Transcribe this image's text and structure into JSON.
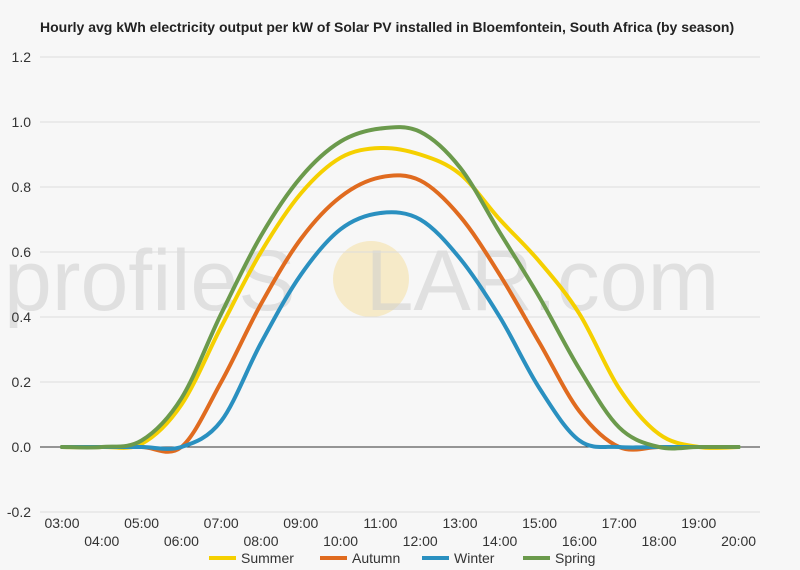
{
  "chart_data": {
    "type": "line",
    "title": "Hourly avg kWh electricity output per kW of Solar PV installed in Bloemfontein, South Africa (by season)",
    "xlabel": "",
    "ylabel": "",
    "ylim": [
      -0.2,
      1.2
    ],
    "yticks": [
      "-0.2",
      "0.0",
      "0.2",
      "0.4",
      "0.6",
      "0.8",
      "1.0",
      "1.2"
    ],
    "y_tick_values": [
      -0.2,
      0,
      0.2,
      0.4,
      0.6,
      0.8,
      1.0,
      1.2
    ],
    "x": [
      "03:00",
      "04:00",
      "05:00",
      "06:00",
      "07:00",
      "08:00",
      "09:00",
      "10:00",
      "11:00",
      "12:00",
      "13:00",
      "14:00",
      "15:00",
      "16:00",
      "17:00",
      "18:00",
      "19:00",
      "20:00"
    ],
    "grid": true,
    "legend_position": "bottom",
    "series": [
      {
        "name": "Summer",
        "color": "#f5d000",
        "values": [
          0.0,
          0.0,
          0.01,
          0.13,
          0.37,
          0.6,
          0.78,
          0.89,
          0.92,
          0.9,
          0.84,
          0.7,
          0.57,
          0.41,
          0.18,
          0.04,
          0.0,
          0.0
        ]
      },
      {
        "name": "Autumn",
        "color": "#e06b1f",
        "values": [
          0.0,
          0.0,
          0.0,
          0.0,
          0.2,
          0.44,
          0.64,
          0.77,
          0.83,
          0.82,
          0.71,
          0.53,
          0.32,
          0.11,
          0.0,
          0.0,
          0.0,
          0.0
        ]
      },
      {
        "name": "Winter",
        "color": "#2a90c0",
        "values": [
          0.0,
          0.0,
          0.0,
          0.0,
          0.08,
          0.32,
          0.53,
          0.67,
          0.72,
          0.7,
          0.58,
          0.4,
          0.18,
          0.02,
          0.0,
          0.0,
          0.0,
          0.0
        ]
      },
      {
        "name": "Spring",
        "color": "#6b9a4c",
        "values": [
          0.0,
          0.0,
          0.02,
          0.15,
          0.41,
          0.65,
          0.83,
          0.94,
          0.98,
          0.97,
          0.86,
          0.66,
          0.46,
          0.24,
          0.06,
          0.0,
          0.0,
          0.0
        ]
      }
    ],
    "watermark": "profileSOLAR.com"
  }
}
